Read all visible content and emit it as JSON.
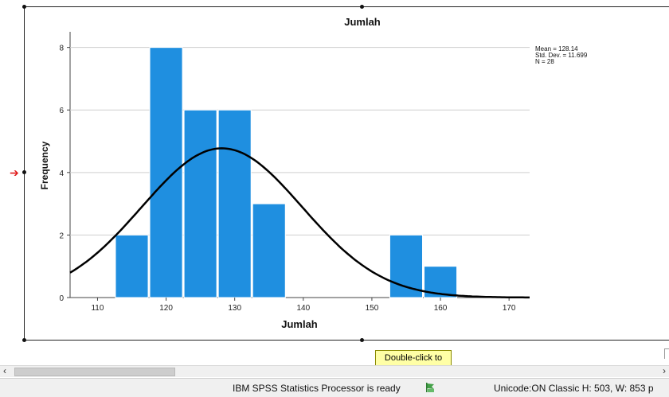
{
  "chart_data": {
    "type": "bar",
    "title": "Jumlah",
    "xlabel": "Jumlah",
    "ylabel": "Frequency",
    "xlim": [
      106,
      173
    ],
    "ylim": [
      0,
      8.5
    ],
    "xticks": [
      110,
      120,
      130,
      140,
      150,
      160,
      170
    ],
    "yticks": [
      0,
      2,
      4,
      6,
      8
    ],
    "bins": [
      {
        "start": 112.5,
        "end": 117.5,
        "count": 2
      },
      {
        "start": 117.5,
        "end": 122.5,
        "count": 8
      },
      {
        "start": 122.5,
        "end": 127.5,
        "count": 6
      },
      {
        "start": 127.5,
        "end": 132.5,
        "count": 6
      },
      {
        "start": 132.5,
        "end": 137.5,
        "count": 3
      },
      {
        "start": 152.5,
        "end": 157.5,
        "count": 2
      },
      {
        "start": 157.5,
        "end": 162.5,
        "count": 1
      }
    ],
    "normal_curve": {
      "mean": 128.14,
      "sd": 11.699,
      "n": 28,
      "bin_width": 5
    },
    "stats": [
      "Mean = 128.14",
      "Std. Dev. = 11.699",
      "N = 28"
    ],
    "grid": "horizontal",
    "colors": {
      "bar": "#1f8fe0",
      "curve": "#000000",
      "grid": "#cfcfcf"
    }
  },
  "tooltip": {
    "text": "Double-click to\nactivate"
  },
  "status": {
    "processor": "IBM SPSS Statistics Processor is ready",
    "info": "Unicode:ON  Classic  H: 503, W: 853 p"
  },
  "scrollbar": {
    "left_arrow": "‹",
    "right_arrow": "›"
  },
  "selection_marker": "➔"
}
